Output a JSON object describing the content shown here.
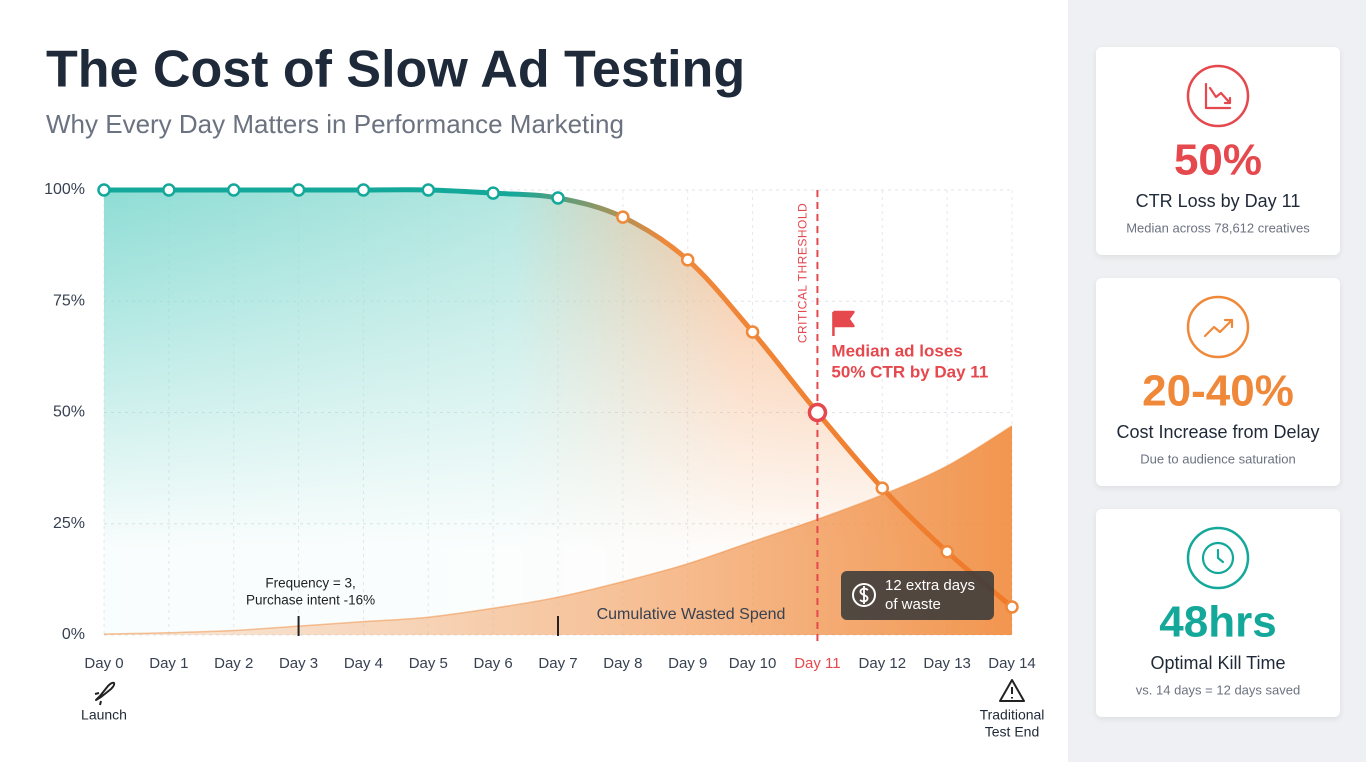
{
  "chart_data": {
    "type": "line",
    "title": "The Cost of Slow Ad Testing",
    "subtitle": "Why Every Day Matters in Performance Marketing",
    "categories": [
      "Day 0",
      "Day 1",
      "Day 2",
      "Day 3",
      "Day 4",
      "Day 5",
      "Day 6",
      "Day 7",
      "Day 8",
      "Day 9",
      "Day 10",
      "Day 11",
      "Day 12",
      "Day 13",
      "Day 14"
    ],
    "series": [
      {
        "color": "#f0883a",
        "start_color": "#14a89a",
        "values": [
          100,
          100,
          100,
          100,
          100,
          100,
          99.3,
          98.2,
          93.9,
          84.3,
          68.1,
          50,
          33,
          18.7,
          6.3
        ]
      },
      {
        "name": "Cumulative Wasted Spend",
        "color": "#f08a3c",
        "type": "area",
        "values": [
          0.2,
          0.5,
          1,
          2,
          3,
          4,
          6,
          8.5,
          12,
          16,
          21,
          26,
          31.5,
          38,
          47
        ]
      }
    ],
    "ylim": [
      0,
      100
    ],
    "yticks": [
      {
        "value": 0,
        "label": "0%"
      },
      {
        "value": 25,
        "label": "25%"
      },
      {
        "value": 50,
        "label": "50%"
      },
      {
        "value": 75,
        "label": "75%"
      },
      {
        "value": 100,
        "label": "100%"
      }
    ],
    "grid": true,
    "threshold": {
      "index": 11,
      "label": "CRITICAL THRESHOLD",
      "color": "#e5484d",
      "note": [
        "Median ad loses",
        "50% CTR by Day 11"
      ]
    },
    "annotations": [
      {
        "index": 3,
        "lines": [
          "Frequency = 3,",
          "Purchase intent -16%"
        ]
      },
      {
        "index": 7,
        "lines": []
      }
    ],
    "callout": [
      "12 extra days",
      "of waste"
    ],
    "start_label": "Launch",
    "end_label": [
      "Traditional",
      "Test End"
    ]
  },
  "cards": [
    {
      "value": "50%",
      "label": "CTR Loss by Day 11",
      "note": "Median across 78,612 creatives",
      "color": "#e5484d"
    },
    {
      "value": "20-40%",
      "label": "Cost Increase from Delay",
      "note": "Due to audience saturation",
      "color": "#f0883a"
    },
    {
      "value": "48hrs",
      "label": "Optimal Kill Time",
      "note": "vs. 14 days = 12 days saved",
      "color": "#14a89a"
    }
  ]
}
